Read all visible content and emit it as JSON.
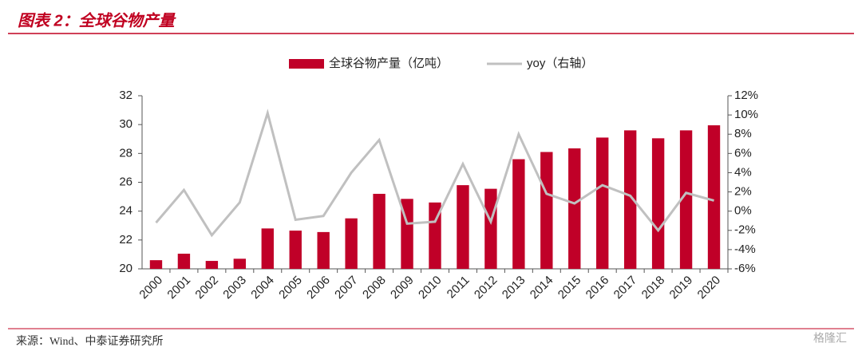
{
  "chart_data": {
    "type": "bar_line",
    "title": "图表 2：全球谷物产量",
    "source": "来源：Wind、中泰证券研究所",
    "watermark": "格隆汇",
    "categories": [
      "2000",
      "2001",
      "2002",
      "2003",
      "2004",
      "2005",
      "2006",
      "2007",
      "2008",
      "2009",
      "2010",
      "2011",
      "2012",
      "2013",
      "2014",
      "2015",
      "2016",
      "2017",
      "2018",
      "2019",
      "2020"
    ],
    "series": [
      {
        "name": "全球谷物产量（亿吨）",
        "color": "#c00028",
        "type": "bar",
        "values": [
          20.6,
          21.05,
          20.55,
          20.7,
          22.8,
          22.65,
          22.55,
          23.5,
          25.2,
          24.85,
          24.6,
          25.8,
          25.55,
          27.6,
          28.1,
          28.35,
          29.1,
          29.6,
          29.05,
          29.6,
          29.95
        ]
      },
      {
        "name": "yoy（右轴）",
        "color": "#c0c0c0",
        "type": "line",
        "axis": "y2",
        "values": [
          -1.2,
          2.2,
          -2.5,
          0.9,
          10.2,
          -0.9,
          -0.5,
          4.0,
          7.4,
          -1.3,
          -1.1,
          4.9,
          -1.1,
          8.0,
          1.8,
          0.8,
          2.7,
          1.6,
          -2.0,
          1.9,
          1.1
        ]
      }
    ],
    "ylim": [
      20,
      32
    ],
    "yticks": [
      20,
      22,
      24,
      26,
      28,
      30,
      32
    ],
    "y2lim": [
      -6,
      12
    ],
    "y2ticks": [
      {
        "value": -6,
        "label": "-6%"
      },
      {
        "value": -4,
        "label": "-4%"
      },
      {
        "value": -2,
        "label": "-2%"
      },
      {
        "value": 0,
        "label": "0%"
      },
      {
        "value": 2,
        "label": "2%"
      },
      {
        "value": 4,
        "label": "4%"
      },
      {
        "value": 6,
        "label": "6%"
      },
      {
        "value": 8,
        "label": "8%"
      },
      {
        "value": 10,
        "label": "10%"
      },
      {
        "value": 12,
        "label": "12%"
      }
    ],
    "legend": "top"
  }
}
